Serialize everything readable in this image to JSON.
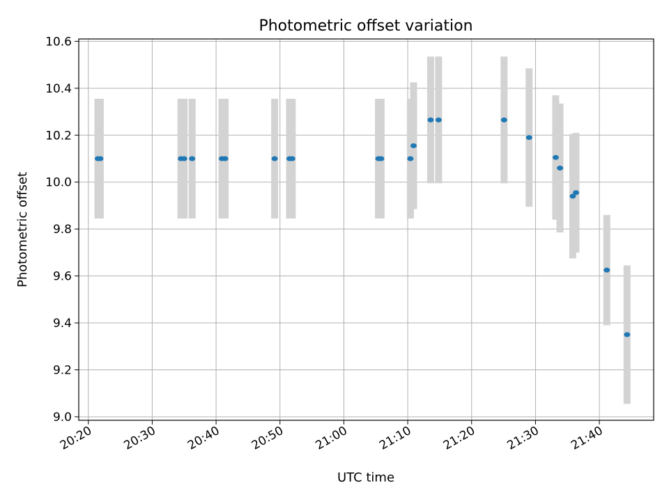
{
  "chart_data": {
    "type": "scatter",
    "title": "Photometric offset variation",
    "xlabel": "UTC time",
    "ylabel": "Photometric offset",
    "ylim": [
      8.985,
      10.61
    ],
    "xlim": [
      "20:18:30",
      "21:48:30"
    ],
    "grid": true,
    "legend": "none",
    "x_ticks": [
      "20:20",
      "20:30",
      "20:40",
      "20:50",
      "21:00",
      "21:10",
      "21:20",
      "21:30",
      "21:40"
    ],
    "y_ticks": [
      "9.0",
      "9.2",
      "9.4",
      "9.6",
      "9.8",
      "10.0",
      "10.2",
      "10.4",
      "10.6"
    ],
    "series": [
      {
        "color": "#1f77b4",
        "error_color": "#d3d3d3",
        "points": [
          {
            "t": "20:21:30",
            "y": 10.1,
            "err": 0.255
          },
          {
            "t": "20:21:52",
            "y": 10.1,
            "err": 0.255
          },
          {
            "t": "20:34:30",
            "y": 10.1,
            "err": 0.255
          },
          {
            "t": "20:35:00",
            "y": 10.1,
            "err": 0.255
          },
          {
            "t": "20:36:15",
            "y": 10.1,
            "err": 0.255
          },
          {
            "t": "20:40:55",
            "y": 10.1,
            "err": 0.255
          },
          {
            "t": "20:41:25",
            "y": 10.1,
            "err": 0.255
          },
          {
            "t": "20:49:10",
            "y": 10.1,
            "err": 0.255
          },
          {
            "t": "20:51:30",
            "y": 10.1,
            "err": 0.255
          },
          {
            "t": "20:51:55",
            "y": 10.1,
            "err": 0.255
          },
          {
            "t": "21:05:25",
            "y": 10.1,
            "err": 0.255
          },
          {
            "t": "21:05:50",
            "y": 10.1,
            "err": 0.255
          },
          {
            "t": "21:10:25",
            "y": 10.1,
            "err": 0.255
          },
          {
            "t": "21:10:55",
            "y": 10.155,
            "err": 0.27
          },
          {
            "t": "21:13:35",
            "y": 10.265,
            "err": 0.27
          },
          {
            "t": "21:14:50",
            "y": 10.265,
            "err": 0.27
          },
          {
            "t": "21:25:05",
            "y": 10.265,
            "err": 0.27
          },
          {
            "t": "21:29:00",
            "y": 10.19,
            "err": 0.295
          },
          {
            "t": "21:33:10",
            "y": 10.105,
            "err": 0.265
          },
          {
            "t": "21:33:50",
            "y": 10.06,
            "err": 0.275
          },
          {
            "t": "21:35:50",
            "y": 9.94,
            "err": 0.265
          },
          {
            "t": "21:36:20",
            "y": 9.955,
            "err": 0.255
          },
          {
            "t": "21:41:10",
            "y": 9.625,
            "err": 0.235
          },
          {
            "t": "21:44:20",
            "y": 9.35,
            "err": 0.295
          }
        ]
      }
    ]
  }
}
